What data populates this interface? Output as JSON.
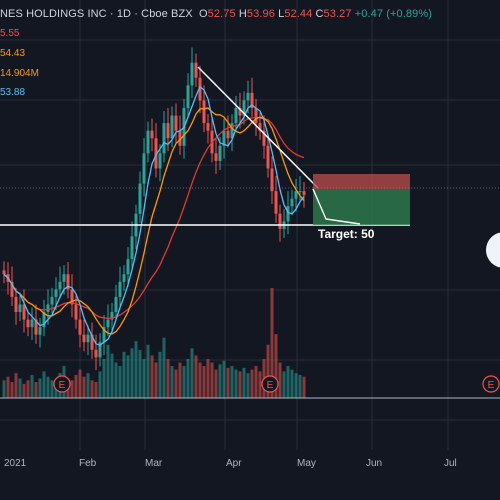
{
  "header": {
    "symbol": "NES HOLDINGS INC",
    "interval": "1D",
    "exchange": "Cboe BZX",
    "o_label": "O",
    "o_value": "52.75",
    "h_label": "H",
    "h_value": "53.96",
    "l_label": "L",
    "l_value": "52.44",
    "c_label": "C",
    "c_value": "53.27",
    "change": "+0.47 (+0.89%)"
  },
  "indicators": [
    {
      "value": "5.55",
      "color": "#ef5350"
    },
    {
      "value": "54.43",
      "color": "#ff9800"
    },
    {
      "value": "14.904M",
      "color": "#ff9800"
    },
    {
      "value": "53.88",
      "color": "#4fc3f7"
    }
  ],
  "annotation": {
    "target_label": "Target: 50"
  },
  "colors": {
    "background": "#131722",
    "up": "#26a69a",
    "down": "#ef5350",
    "ma_fast": "#4fc3f7",
    "ma_mid": "#ff9800",
    "ma_slow": "#e53935",
    "stop_zone": "#b24a4a",
    "profit_zone": "#2e7d4f"
  },
  "chart_data": {
    "type": "candlestick",
    "x_ticks": [
      "2021",
      "Feb",
      "Mar",
      "Apr",
      "May",
      "Jun",
      "Jul"
    ],
    "y_range_estimated": [
      30,
      75
    ],
    "support_level": 49.5,
    "trendline": {
      "from": {
        "date": "Mar 12",
        "price": 73
      },
      "to": {
        "date": "May 6",
        "price": 55
      }
    },
    "position": {
      "entry": 54.5,
      "stop": 57.0,
      "target": 50.0
    },
    "earnings_markers": [
      "Jan 28",
      "Apr 28",
      "Jul 28"
    ],
    "closes": [
      44,
      43,
      41,
      39,
      40,
      38,
      37,
      38,
      36,
      37,
      39,
      40,
      41,
      42,
      43,
      44,
      42,
      40,
      38,
      36,
      35,
      36,
      34,
      33,
      35,
      37,
      38,
      39,
      41,
      43,
      44,
      46,
      49,
      52,
      56,
      60,
      63,
      62,
      58,
      60,
      64,
      62,
      65,
      63,
      61,
      66,
      69,
      72,
      70,
      67,
      64,
      63,
      60,
      59,
      61,
      63,
      62,
      64,
      66,
      65,
      67,
      68,
      66,
      64,
      63,
      61,
      58,
      55,
      52,
      50,
      51,
      53,
      54,
      55,
      55,
      54.5
    ],
    "volumes": [
      10,
      12,
      9,
      14,
      11,
      8,
      10,
      13,
      9,
      11,
      15,
      12,
      10,
      9,
      14,
      18,
      11,
      10,
      13,
      16,
      12,
      14,
      10,
      9,
      15,
      22,
      30,
      25,
      20,
      18,
      26,
      24,
      28,
      32,
      27,
      22,
      30,
      24,
      20,
      26,
      34,
      22,
      18,
      16,
      20,
      18,
      22,
      28,
      24,
      20,
      18,
      22,
      20,
      16,
      19,
      21,
      17,
      18,
      16,
      15,
      17,
      14,
      16,
      18,
      15,
      22,
      30,
      62,
      36,
      20,
      15,
      18,
      16,
      14,
      13,
      12
    ]
  }
}
